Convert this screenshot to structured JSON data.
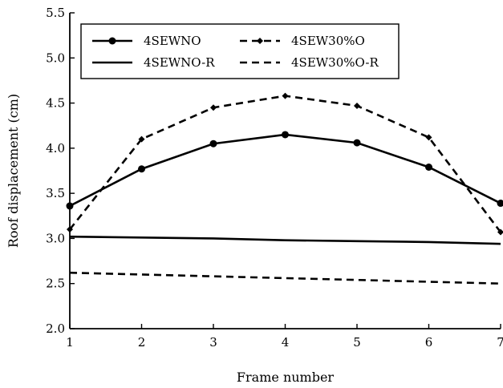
{
  "chart_data": {
    "type": "line",
    "title": "",
    "xlabel": "Frame number",
    "ylabel": "Roof displacement (cm)",
    "x": [
      1,
      2,
      3,
      4,
      5,
      6,
      7
    ],
    "x_tick_labels": [
      "1",
      "2",
      "3",
      "4",
      "5",
      "6",
      "7"
    ],
    "y_tick_labels": [
      "2.0",
      "2.5",
      "3.0",
      "3.5",
      "4.0",
      "4.5",
      "5.0",
      "5.5"
    ],
    "xlim": [
      1,
      7
    ],
    "ylim": [
      2.0,
      5.5
    ],
    "grid": false,
    "legend_position": "top",
    "series": [
      {
        "name": "4SEWNO",
        "style": "solid",
        "marker": "circle",
        "values": [
          3.36,
          3.77,
          4.05,
          4.15,
          4.06,
          3.79,
          3.39
        ]
      },
      {
        "name": "4SEWNO-R",
        "style": "solid",
        "marker": "none",
        "values": [
          3.02,
          3.01,
          3.0,
          2.98,
          2.97,
          2.96,
          2.94
        ]
      },
      {
        "name": "4SEW30%O",
        "style": "dashed",
        "marker": "diamond",
        "values": [
          3.1,
          4.1,
          4.45,
          4.58,
          4.47,
          4.12,
          3.07
        ]
      },
      {
        "name": "4SEW30%O-R",
        "style": "dashed",
        "marker": "none",
        "values": [
          2.62,
          2.6,
          2.58,
          2.56,
          2.54,
          2.52,
          2.5
        ]
      }
    ],
    "colors": {
      "line": "#000000",
      "background": "#ffffff"
    }
  }
}
